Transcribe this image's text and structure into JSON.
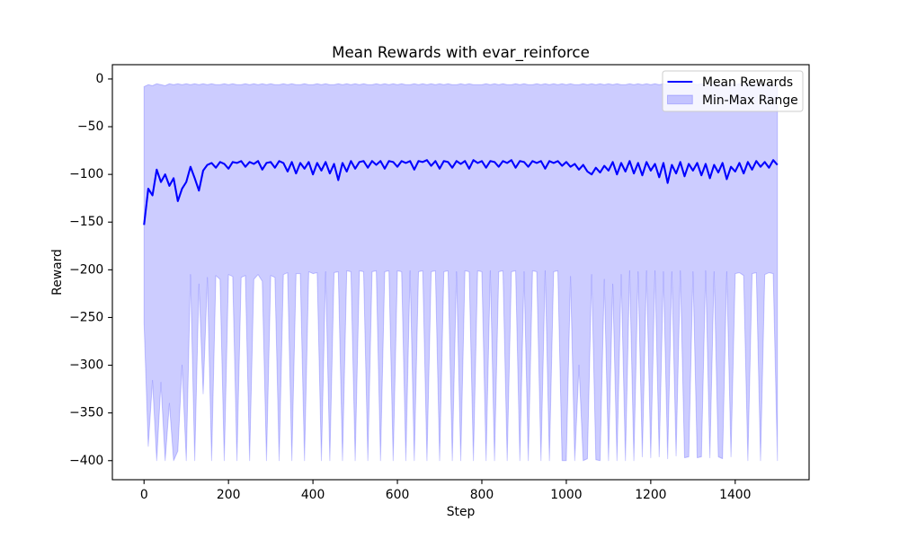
{
  "chart_data": {
    "type": "line",
    "title": "Mean Rewards with evar_reinforce",
    "xlabel": "Step",
    "ylabel": "Reward",
    "xlim": [
      -75,
      1575
    ],
    "ylim": [
      -420,
      15
    ],
    "x_ticks": [
      0,
      200,
      400,
      600,
      800,
      1000,
      1200,
      1400
    ],
    "x_tick_labels": [
      "0",
      "200",
      "400",
      "600",
      "800",
      "1000",
      "1200",
      "1400"
    ],
    "y_ticks": [
      0,
      -50,
      -100,
      -150,
      -200,
      -250,
      -300,
      -350,
      -400
    ],
    "y_tick_labels": [
      "0",
      "−50",
      "−100",
      "−150",
      "−200",
      "−250",
      "−300",
      "−350",
      "−400"
    ],
    "grid": false,
    "legend": {
      "placement": "top-right"
    },
    "x": [
      0,
      10,
      20,
      30,
      40,
      50,
      60,
      70,
      80,
      90,
      100,
      110,
      120,
      130,
      140,
      150,
      160,
      170,
      180,
      190,
      200,
      210,
      220,
      230,
      240,
      250,
      260,
      270,
      280,
      290,
      300,
      310,
      320,
      330,
      340,
      350,
      360,
      370,
      380,
      390,
      400,
      410,
      420,
      430,
      440,
      450,
      460,
      470,
      480,
      490,
      500,
      510,
      520,
      530,
      540,
      550,
      560,
      570,
      580,
      590,
      600,
      610,
      620,
      630,
      640,
      650,
      660,
      670,
      680,
      690,
      700,
      710,
      720,
      730,
      740,
      750,
      760,
      770,
      780,
      790,
      800,
      810,
      820,
      830,
      840,
      850,
      860,
      870,
      880,
      890,
      900,
      910,
      920,
      930,
      940,
      950,
      960,
      970,
      980,
      990,
      1000,
      1010,
      1020,
      1030,
      1040,
      1050,
      1060,
      1070,
      1080,
      1090,
      1100,
      1110,
      1120,
      1130,
      1140,
      1150,
      1160,
      1170,
      1180,
      1190,
      1200,
      1210,
      1220,
      1230,
      1240,
      1250,
      1260,
      1270,
      1280,
      1290,
      1300,
      1310,
      1320,
      1330,
      1340,
      1350,
      1360,
      1370,
      1380,
      1390,
      1400,
      1410,
      1420,
      1430,
      1440,
      1450,
      1460,
      1470,
      1480,
      1490,
      1500
    ],
    "series": [
      {
        "name": "Mean Rewards",
        "type": "line",
        "color": "#0000ff",
        "values": [
          -153,
          -115,
          -122,
          -95,
          -108,
          -100,
          -112,
          -104,
          -128,
          -115,
          -108,
          -92,
          -104,
          -117,
          -96,
          -90,
          -88,
          -93,
          -87,
          -89,
          -94,
          -87,
          -88,
          -86,
          -92,
          -87,
          -89,
          -86,
          -95,
          -88,
          -87,
          -93,
          -86,
          -88,
          -97,
          -87,
          -99,
          -88,
          -94,
          -87,
          -100,
          -88,
          -96,
          -87,
          -99,
          -89,
          -106,
          -88,
          -97,
          -86,
          -94,
          -87,
          -86,
          -93,
          -86,
          -90,
          -86,
          -94,
          -86,
          -87,
          -92,
          -86,
          -88,
          -86,
          -95,
          -86,
          -87,
          -85,
          -91,
          -86,
          -94,
          -86,
          -87,
          -93,
          -86,
          -89,
          -86,
          -94,
          -85,
          -88,
          -86,
          -93,
          -86,
          -87,
          -92,
          -86,
          -88,
          -85,
          -93,
          -86,
          -87,
          -92,
          -86,
          -88,
          -86,
          -94,
          -86,
          -88,
          -86,
          -91,
          -87,
          -92,
          -89,
          -95,
          -90,
          -97,
          -100,
          -93,
          -98,
          -91,
          -96,
          -87,
          -100,
          -88,
          -97,
          -86,
          -99,
          -88,
          -101,
          -87,
          -96,
          -89,
          -103,
          -88,
          -109,
          -90,
          -99,
          -87,
          -102,
          -89,
          -96,
          -88,
          -101,
          -89,
          -104,
          -90,
          -98,
          -88,
          -105,
          -92,
          -97,
          -88,
          -99,
          -87,
          -95,
          -86,
          -92,
          -87,
          -93,
          -85,
          -90
        ]
      },
      {
        "name": "Min-Max Range",
        "type": "band",
        "color": "#0000ff",
        "alpha": 0.2,
        "lower": [
          -255,
          -385,
          -316,
          -400,
          -318,
          -400,
          -340,
          -400,
          -390,
          -300,
          -400,
          -205,
          -400,
          -215,
          -330,
          -208,
          -400,
          -206,
          -210,
          -400,
          -205,
          -207,
          -400,
          -208,
          -206,
          -400,
          -210,
          -205,
          -212,
          -400,
          -206,
          -208,
          -400,
          -205,
          -203,
          -400,
          -204,
          -204,
          -400,
          -202,
          -204,
          -203,
          -400,
          -202,
          -400,
          -203,
          -202,
          -400,
          -201,
          -202,
          -400,
          -201,
          -202,
          -400,
          -202,
          -201,
          -400,
          -202,
          -201,
          -400,
          -201,
          -202,
          -400,
          -201,
          -400,
          -202,
          -201,
          -400,
          -202,
          -201,
          -400,
          -202,
          -201,
          -400,
          -202,
          -400,
          -201,
          -202,
          -400,
          -201,
          -202,
          -400,
          -201,
          -400,
          -202,
          -201,
          -400,
          -202,
          -201,
          -400,
          -202,
          -400,
          -201,
          -202,
          -400,
          -201,
          -400,
          -202,
          -201,
          -400,
          -400,
          -207,
          -400,
          -300,
          -400,
          -398,
          -205,
          -399,
          -400,
          -210,
          -400,
          -215,
          -400,
          -205,
          -400,
          -201,
          -400,
          -202,
          -396,
          -201,
          -397,
          -201,
          -396,
          -202,
          -398,
          -202,
          -395,
          -201,
          -397,
          -396,
          -202,
          -397,
          -396,
          -201,
          -397,
          -202,
          -396,
          -398,
          -202,
          -396,
          -204,
          -203,
          -206,
          -400,
          -204,
          -203,
          -400,
          -205,
          -203,
          -204,
          -400
        ],
        "upper": [
          -8,
          -6,
          -7,
          -5,
          -6,
          -7,
          -5,
          -6,
          -5,
          -6,
          -5,
          -6,
          -5,
          -6,
          -5,
          -6,
          -5,
          -6,
          -6,
          -5,
          -6,
          -5,
          -6,
          -6,
          -5,
          -6,
          -5,
          -6,
          -5,
          -6,
          -5,
          -6,
          -6,
          -5,
          -6,
          -5,
          -6,
          -6,
          -5,
          -6,
          -6,
          -5,
          -6,
          -5,
          -6,
          -6,
          -5,
          -6,
          -5,
          -6,
          -5,
          -6,
          -5,
          -6,
          -6,
          -5,
          -6,
          -5,
          -6,
          -5,
          -6,
          -5,
          -6,
          -6,
          -5,
          -6,
          -5,
          -6,
          -5,
          -6,
          -5,
          -6,
          -5,
          -6,
          -6,
          -5,
          -6,
          -5,
          -6,
          -6,
          -6,
          -5,
          -6,
          -5,
          -6,
          -5,
          -6,
          -6,
          -5,
          -6,
          -5,
          -6,
          -6,
          -5,
          -6,
          -5,
          -6,
          -5,
          -6,
          -5,
          -6,
          -5,
          -6,
          -6,
          -5,
          -6,
          -5,
          -6,
          -5,
          -6,
          -5,
          -6,
          -5,
          -6,
          -6,
          -5,
          -6,
          -5,
          -6,
          -5,
          -6,
          -5,
          -6,
          -5,
          -6,
          -6,
          -5,
          -6,
          -5,
          -6,
          -5,
          -6,
          -5,
          -6,
          -5,
          -6,
          -6,
          -5,
          -6,
          -5,
          -6,
          -5,
          -6,
          -5,
          -6,
          -5,
          -6,
          -6,
          -5,
          -6,
          -6
        ]
      }
    ]
  }
}
